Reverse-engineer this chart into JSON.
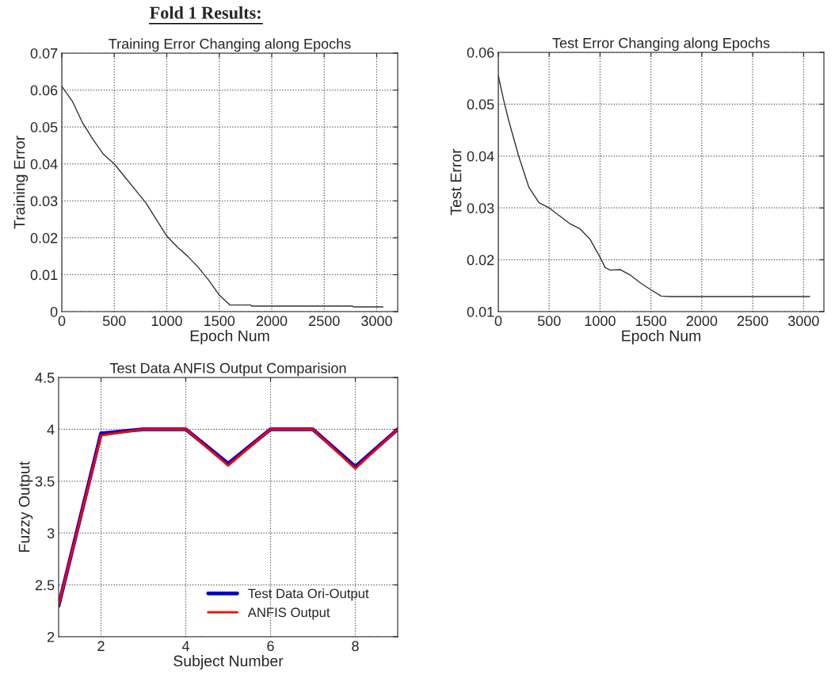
{
  "chart_data": [
    {
      "type": "line",
      "title": "Training Error Changing along Epochs",
      "xlabel": "Epoch Num",
      "ylabel": "Training Error",
      "annotations": [
        "Fold 1 Results:"
      ],
      "series": [
        {
          "color": "#333333",
          "x": [
            0,
            100,
            200,
            300,
            400,
            500,
            600,
            700,
            800,
            900,
            1000,
            1050,
            1100,
            1200,
            1300,
            1400,
            1500,
            1600,
            1800,
            1810,
            2770,
            2780,
            3060
          ],
          "values": [
            0.061,
            0.057,
            0.051,
            0.0465,
            0.0425,
            0.04,
            0.0365,
            0.033,
            0.0295,
            0.025,
            0.0205,
            0.019,
            0.0175,
            0.015,
            0.012,
            0.0085,
            0.0045,
            0.0018,
            0.0018,
            0.0015,
            0.0015,
            0.0013,
            0.0013
          ]
        }
      ],
      "xlim": [
        0,
        3200
      ],
      "ylim": [
        0,
        0.07
      ],
      "xticks": [
        0,
        500,
        1000,
        1500,
        2000,
        2500,
        3000
      ],
      "yticks": [
        0,
        0.01,
        0.02,
        0.03,
        0.04,
        0.05,
        0.06,
        0.07
      ],
      "grid": true,
      "line_style": "solid",
      "marker": "none"
    },
    {
      "type": "line",
      "title": "Test Error Changing along Epochs",
      "xlabel": "Epoch Num",
      "ylabel": "Test Error",
      "series": [
        {
          "color": "#333333",
          "x": [
            0,
            50,
            100,
            200,
            300,
            400,
            500,
            600,
            700,
            800,
            900,
            1000,
            1050,
            1100,
            1200,
            1300,
            1400,
            1500,
            1600,
            1700,
            3060
          ],
          "values": [
            0.0555,
            0.051,
            0.047,
            0.04,
            0.034,
            0.031,
            0.03,
            0.0285,
            0.027,
            0.026,
            0.024,
            0.0205,
            0.0185,
            0.018,
            0.0181,
            0.017,
            0.0155,
            0.0142,
            0.013,
            0.0129,
            0.0129
          ]
        }
      ],
      "xlim": [
        0,
        3200
      ],
      "ylim": [
        0.01,
        0.06
      ],
      "xticks": [
        0,
        500,
        1000,
        1500,
        2000,
        2500,
        3000
      ],
      "yticks": [
        0.01,
        0.02,
        0.03,
        0.04,
        0.05,
        0.06
      ],
      "grid": true,
      "line_style": "solid",
      "marker": "none"
    },
    {
      "type": "line",
      "title": "Test Data ANFIS Output Comparision",
      "xlabel": "Subject Number",
      "ylabel": "Fuzzy Output",
      "x": [
        1,
        2,
        3,
        4,
        5,
        6,
        7,
        8,
        9
      ],
      "series": [
        {
          "name": "Test Data Ori-Output",
          "color": "#0000cc",
          "values": [
            2.3,
            3.96,
            4,
            4,
            3.67,
            4,
            4,
            3.64,
            4
          ]
        },
        {
          "name": "ANFIS Output",
          "color": "#ff0000",
          "values": [
            2.3,
            3.94,
            4,
            4,
            3.65,
            4,
            4,
            3.62,
            4
          ]
        }
      ],
      "xlim": [
        1,
        9
      ],
      "ylim": [
        2,
        4.5
      ],
      "xticks": [
        2,
        4,
        6,
        8
      ],
      "yticks": [
        2,
        2.5,
        3,
        3.5,
        4,
        4.5
      ],
      "grid": true,
      "legend": "bottom right",
      "line_style": "solid",
      "marker": "none"
    }
  ]
}
